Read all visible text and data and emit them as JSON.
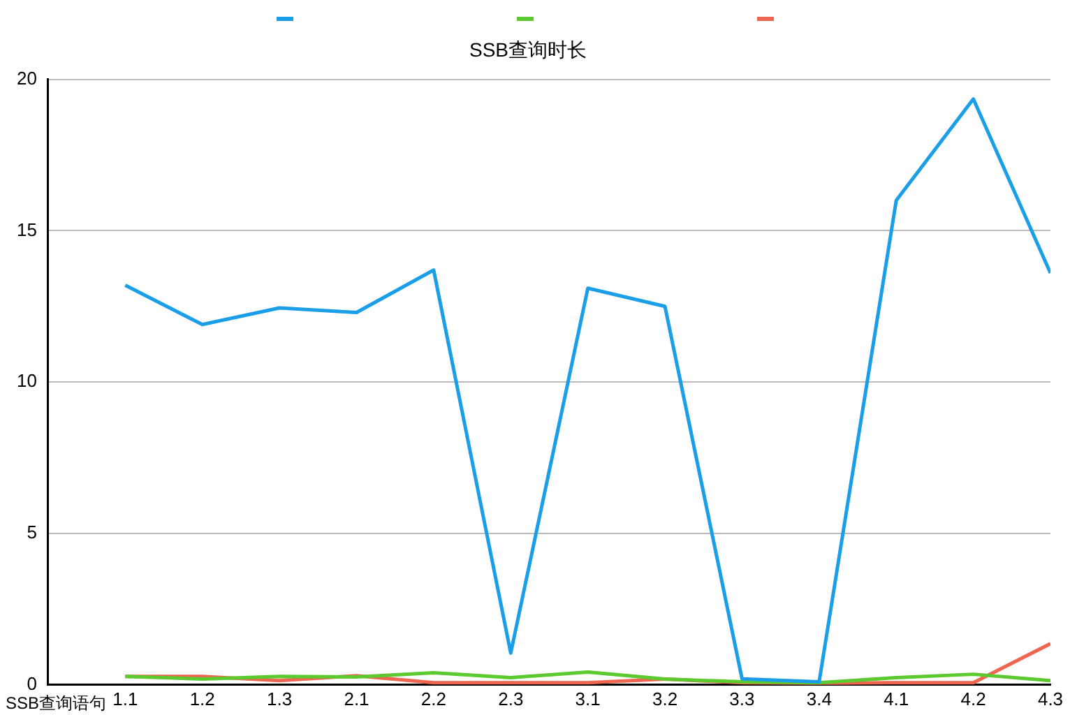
{
  "chart_data": {
    "type": "line",
    "title": "SSB查询时长",
    "xlabel": "SSB查询语句",
    "categories": [
      "1.1",
      "1.2",
      "1.3",
      "2.1",
      "2.2",
      "2.3",
      "3.1",
      "3.2",
      "3.3",
      "3.4",
      "4.1",
      "4.2",
      "4.3"
    ],
    "series": [
      {
        "color": "#1a9ee8",
        "values": [
          13.2,
          11.9,
          12.45,
          12.3,
          13.7,
          1.05,
          13.1,
          12.5,
          0.2,
          0.1,
          16.0,
          19.35,
          13.6
        ]
      },
      {
        "color": "#5cc92e",
        "values": [
          0.28,
          0.19,
          0.28,
          0.26,
          0.4,
          0.24,
          0.42,
          0.19,
          0.1,
          0.07,
          0.24,
          0.35,
          0.14
        ]
      },
      {
        "color": "#ee6550",
        "values": [
          0.28,
          0.28,
          0.14,
          0.3,
          0.07,
          0.07,
          0.07,
          0.19,
          0.07,
          0.05,
          0.07,
          0.07,
          1.36
        ]
      }
    ],
    "ylim": [
      0,
      20
    ],
    "yticks": [
      0,
      5,
      10,
      15,
      20
    ],
    "grid": "y",
    "marker": "none",
    "line_style": "solid"
  }
}
